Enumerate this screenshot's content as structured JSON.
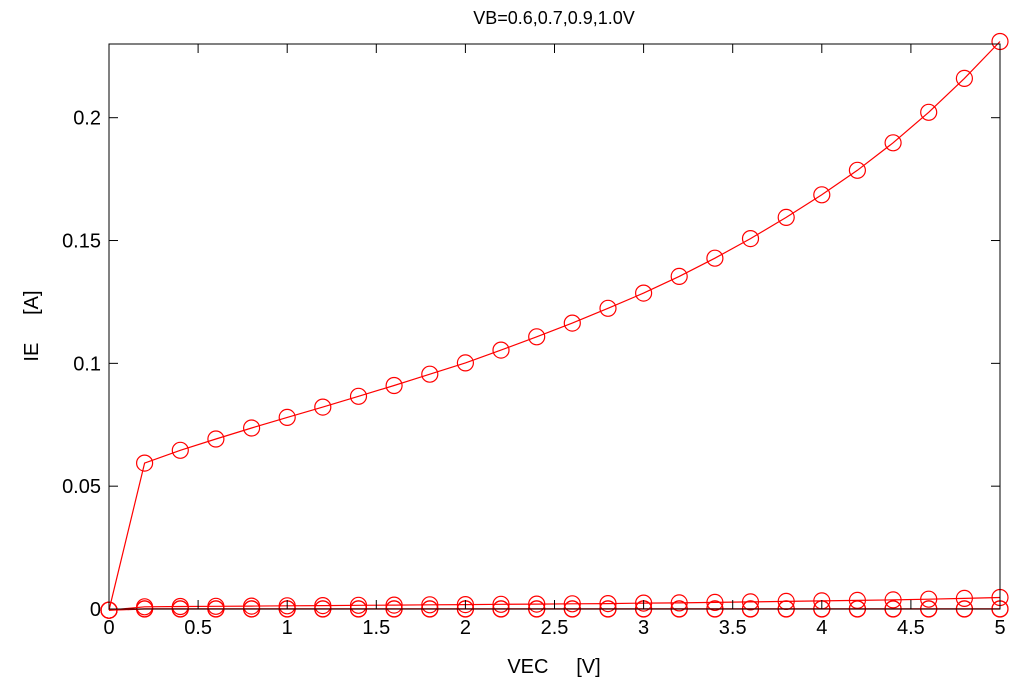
{
  "chart_data": {
    "type": "line",
    "title": "VB=0.6,0.7,0.9,1.0V",
    "xlabel": "VEC     [V]",
    "ylabel": "IE     [A]",
    "xlim": [
      0,
      5
    ],
    "ylim": [
      0,
      0.23
    ],
    "xticks": [
      0,
      0.5,
      1,
      1.5,
      2,
      2.5,
      3,
      3.5,
      4,
      4.5,
      5
    ],
    "xtick_labels": [
      "0",
      "0.5",
      "1",
      "1.5",
      "2",
      "2.5",
      "3",
      "3.5",
      "4",
      "4.5",
      "5"
    ],
    "yticks": [
      0,
      0.05,
      0.1,
      0.15,
      0.2
    ],
    "ytick_labels": [
      "0",
      "0.05",
      "0.1",
      "0.15",
      "0.2"
    ],
    "grid": false,
    "marker": "circle",
    "x": [
      0,
      0.2,
      0.4,
      0.6,
      0.8,
      1.0,
      1.2,
      1.4,
      1.6,
      1.8,
      2.0,
      2.2,
      2.4,
      2.6,
      2.8,
      3.0,
      3.2,
      3.4,
      3.6,
      3.8,
      4.0,
      4.2,
      4.4,
      4.6,
      4.8,
      5.0
    ],
    "series": [
      {
        "color": "#ff0000",
        "values": [
          -0.0005,
          0.0,
          0.0,
          0.0,
          0.0,
          0.0,
          0.0,
          0.0,
          0.0,
          0.0,
          0.0,
          0.0,
          0.0,
          0.0,
          0.0,
          0.0,
          0.0,
          0.0,
          0.0,
          0.0,
          0.0,
          0.0,
          0.0,
          0.0,
          0.0,
          0.0
        ]
      },
      {
        "color": "#ff0000",
        "values": [
          -0.0005,
          0.0001,
          0.0001,
          0.0001,
          0.0001,
          0.0001,
          0.0001,
          0.0001,
          0.0001,
          0.0001,
          0.0001,
          0.0001,
          0.0001,
          0.0001,
          0.0001,
          0.0001,
          0.0001,
          0.0001,
          0.0001,
          0.0001,
          0.0001,
          0.0001,
          0.0001,
          0.0001,
          0.0001,
          0.0001
        ]
      },
      {
        "color": "#ff0000",
        "values": [
          -0.0005,
          0.0009,
          0.001,
          0.0011,
          0.0012,
          0.0013,
          0.0014,
          0.0015,
          0.0016,
          0.0017,
          0.0018,
          0.0019,
          0.002,
          0.0021,
          0.0022,
          0.0024,
          0.0025,
          0.0027,
          0.0029,
          0.0031,
          0.0033,
          0.0035,
          0.0037,
          0.004,
          0.0043,
          0.0047
        ]
      },
      {
        "color": "#ff0000",
        "values": [
          -0.0005,
          0.0594,
          0.0646,
          0.0692,
          0.0737,
          0.078,
          0.0822,
          0.0866,
          0.091,
          0.0956,
          0.1002,
          0.1054,
          0.1108,
          0.1164,
          0.1224,
          0.1286,
          0.1354,
          0.1428,
          0.1508,
          0.1594,
          0.1686,
          0.1786,
          0.1898,
          0.2022,
          0.216,
          0.231
        ]
      }
    ]
  }
}
